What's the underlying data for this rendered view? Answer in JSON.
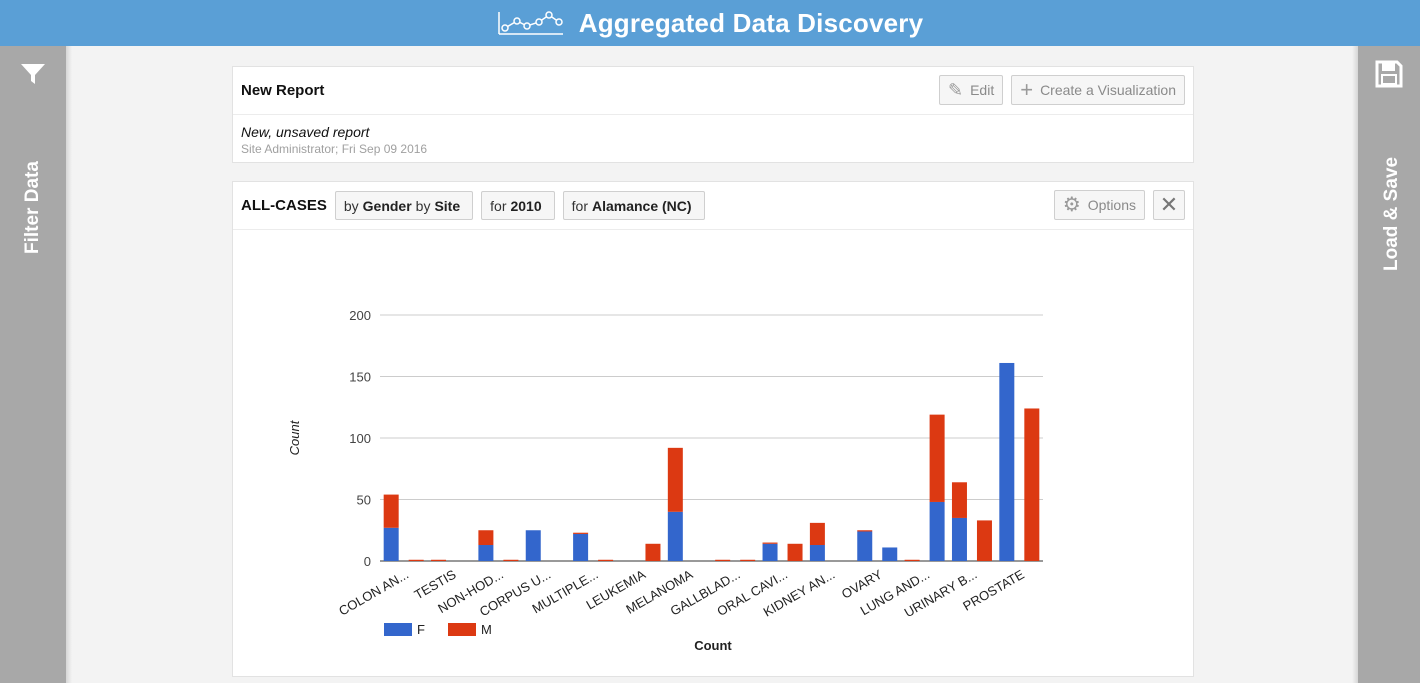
{
  "app": {
    "title": "Aggregated Data Discovery"
  },
  "sidebars": {
    "left_label": "Filter Data",
    "right_label": "Load & Save"
  },
  "report": {
    "title": "New Report",
    "edit_label": "Edit",
    "create_label": "Create a Visualization",
    "subtitle": "New, unsaved report",
    "byline": "Site Administrator; Fri Sep 09 2016"
  },
  "viz": {
    "title": "ALL-CASES",
    "tag_by": {
      "p1": "by",
      "v1": "Gender",
      "p2": "by",
      "v2": "Site"
    },
    "tag_year": {
      "p": "for",
      "v": "2010"
    },
    "tag_county": {
      "p": "for",
      "v": "Alamance (NC)"
    },
    "options_label": "Options",
    "close_label": "✕"
  },
  "chart_data": {
    "type": "bar",
    "stacked": true,
    "ylabel": "Count",
    "xlabel": "Count",
    "ylim": [
      0,
      200
    ],
    "yticks": [
      0,
      50,
      100,
      150,
      200
    ],
    "legend_position": "bottom-left",
    "colors": {
      "F": "#3366cc",
      "M": "#dc3912"
    },
    "categories": [
      "COLON AN...",
      "TESTIS",
      "NON-HOD...",
      "CORPUS U...",
      "MULTIPLE...",
      "LEUKEMIA",
      "MELANOMA",
      "GALLBLAD...",
      "ORAL CAVI...",
      "KIDNEY AN...",
      "OVARY",
      "LUNG AND...",
      "URINARY B...",
      "PROSTATE"
    ],
    "groups": [
      {
        "label": "COLON AN...",
        "bars": [
          {
            "F": 27,
            "M": 27
          },
          {
            "F": 0,
            "M": 1
          }
        ]
      },
      {
        "label": "TESTIS",
        "bars": [
          {
            "F": 0,
            "M": 1
          },
          {
            "F": 0,
            "M": 0
          }
        ]
      },
      {
        "label": "NON-HOD...",
        "bars": [
          {
            "F": 13,
            "M": 12
          },
          {
            "F": 0,
            "M": 1
          }
        ]
      },
      {
        "label": "CORPUS U...",
        "bars": [
          {
            "F": 25,
            "M": 0
          },
          {
            "F": 0,
            "M": 0
          }
        ]
      },
      {
        "label": "MULTIPLE...",
        "bars": [
          {
            "F": 22,
            "M": 1
          },
          {
            "F": 0,
            "M": 1
          }
        ]
      },
      {
        "label": "LEUKEMIA",
        "bars": [
          {
            "F": 0,
            "M": 0
          },
          {
            "F": 0,
            "M": 14
          }
        ]
      },
      {
        "label": "MELANOMA",
        "bars": [
          {
            "F": 40,
            "M": 52
          },
          {
            "F": 0,
            "M": 0
          }
        ]
      },
      {
        "label": "GALLBLAD...",
        "bars": [
          {
            "F": 0,
            "M": 1
          },
          {
            "F": 0,
            "M": 1
          }
        ]
      },
      {
        "label": "ORAL CAVI...",
        "bars": [
          {
            "F": 14,
            "M": 1
          },
          {
            "F": 0,
            "M": 14
          }
        ]
      },
      {
        "label": "KIDNEY AN...",
        "bars": [
          {
            "F": 13,
            "M": 18
          },
          {
            "F": 0,
            "M": 0
          }
        ]
      },
      {
        "label": "OVARY",
        "bars": [
          {
            "F": 24,
            "M": 1
          },
          {
            "F": 11,
            "M": 0
          }
        ]
      },
      {
        "label": "LUNG AND...",
        "bars": [
          {
            "F": 0,
            "M": 1
          },
          {
            "F": 48,
            "M": 71
          }
        ]
      },
      {
        "label": "URINARY B...",
        "bars": [
          {
            "F": 35,
            "M": 29
          },
          {
            "F": 0,
            "M": 33
          }
        ]
      },
      {
        "label": "PROSTATE",
        "bars": [
          {
            "F": 161,
            "M": 0
          },
          {
            "F": 0,
            "M": 124
          }
        ]
      }
    ],
    "legend": [
      {
        "name": "F"
      },
      {
        "name": "M"
      }
    ]
  }
}
